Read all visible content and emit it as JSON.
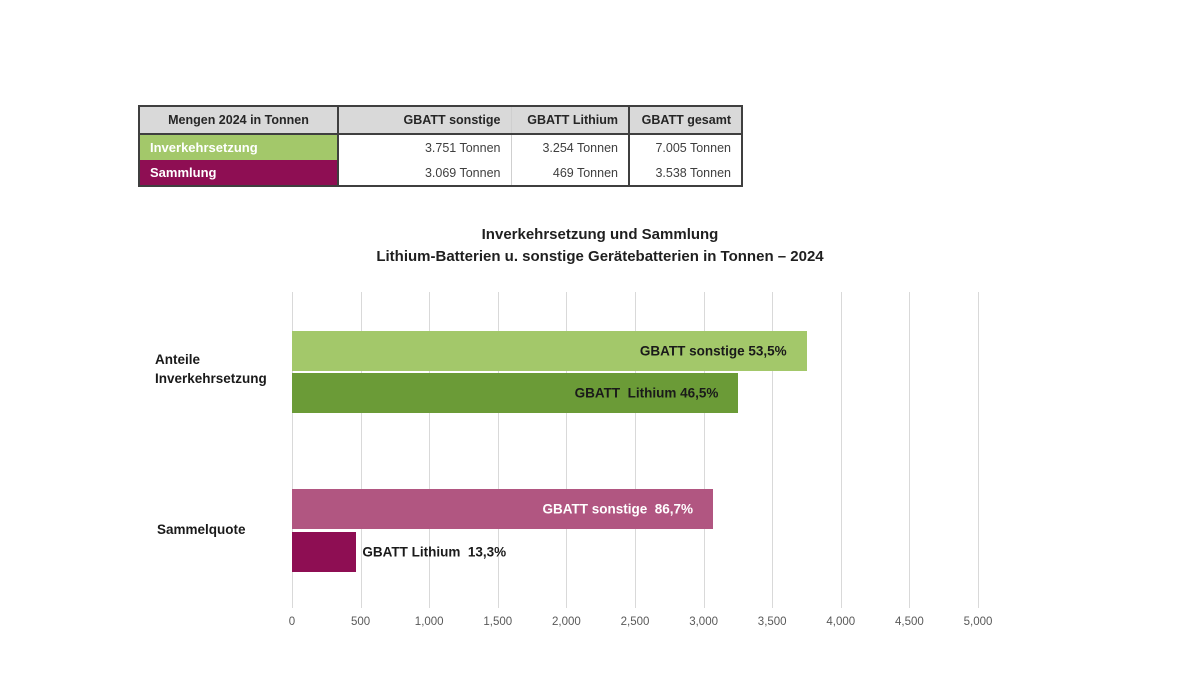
{
  "table": {
    "corner_header": "Mengen 2024 in Tonnen",
    "column_headers": [
      "GBATT sonstige",
      "GBATT Lithium",
      "GBATT gesamt"
    ],
    "rows": [
      {
        "label": "Inverkehrsetzung",
        "color": "#a3c86a",
        "values": [
          "3.751 Tonnen",
          "3.254 Tonnen",
          "7.005 Tonnen"
        ]
      },
      {
        "label": "Sammlung",
        "color": "#8e0e53",
        "values": [
          "3.069 Tonnen",
          "469 Tonnen",
          "3.538 Tonnen"
        ]
      }
    ]
  },
  "chart": {
    "title_line1": "Inverkehrsetzung und Sammlung",
    "title_line2": "Lithium-Batterien u. sonstige Gerätebatterien in Tonnen – 2024"
  },
  "chart_data": {
    "type": "bar",
    "orientation": "horizontal",
    "title": "Inverkehrsetzung und Sammlung — Lithium-Batterien u. sonstige Gerätebatterien in Tonnen – 2024",
    "grid": true,
    "legend": false,
    "x_axis": {
      "min": 0,
      "max": 5000,
      "tick_interval": 500,
      "tick_labels": [
        "0",
        "500",
        "1,000",
        "1,500",
        "2,000",
        "2,500",
        "3,000",
        "3,500",
        "4,000",
        "4,500",
        "5,000"
      ]
    },
    "groups": [
      {
        "category": "Anteile Inverkehrsetzung",
        "bars": [
          {
            "name": "GBATT sonstige",
            "value_tonnen": 3751,
            "percent": 53.5,
            "label": "GBATT sonstige 53,5%",
            "color": "#a3c86a",
            "label_color": "#1a1a1a",
            "label_position": "inside-right"
          },
          {
            "name": "GBATT Lithium",
            "value_tonnen": 3254,
            "percent": 46.5,
            "label": "GBATT  Lithium 46,5%",
            "color": "#6b9b37",
            "label_color": "#1a1a1a",
            "label_position": "inside-right"
          }
        ]
      },
      {
        "category": "Sammelquote",
        "bars": [
          {
            "name": "GBATT sonstige",
            "value_tonnen": 3069,
            "percent": 86.7,
            "label": "GBATT sonstige  86,7%",
            "color": "#b15681",
            "label_color": "#ffffff",
            "label_position": "inside-right"
          },
          {
            "name": "GBATT Lithium",
            "value_tonnen": 469,
            "percent": 13.3,
            "label": "GBATT Lithium  13,3%",
            "color": "#8e0e53",
            "label_color": "#1a1a1a",
            "label_position": "outside-right"
          }
        ]
      }
    ]
  }
}
